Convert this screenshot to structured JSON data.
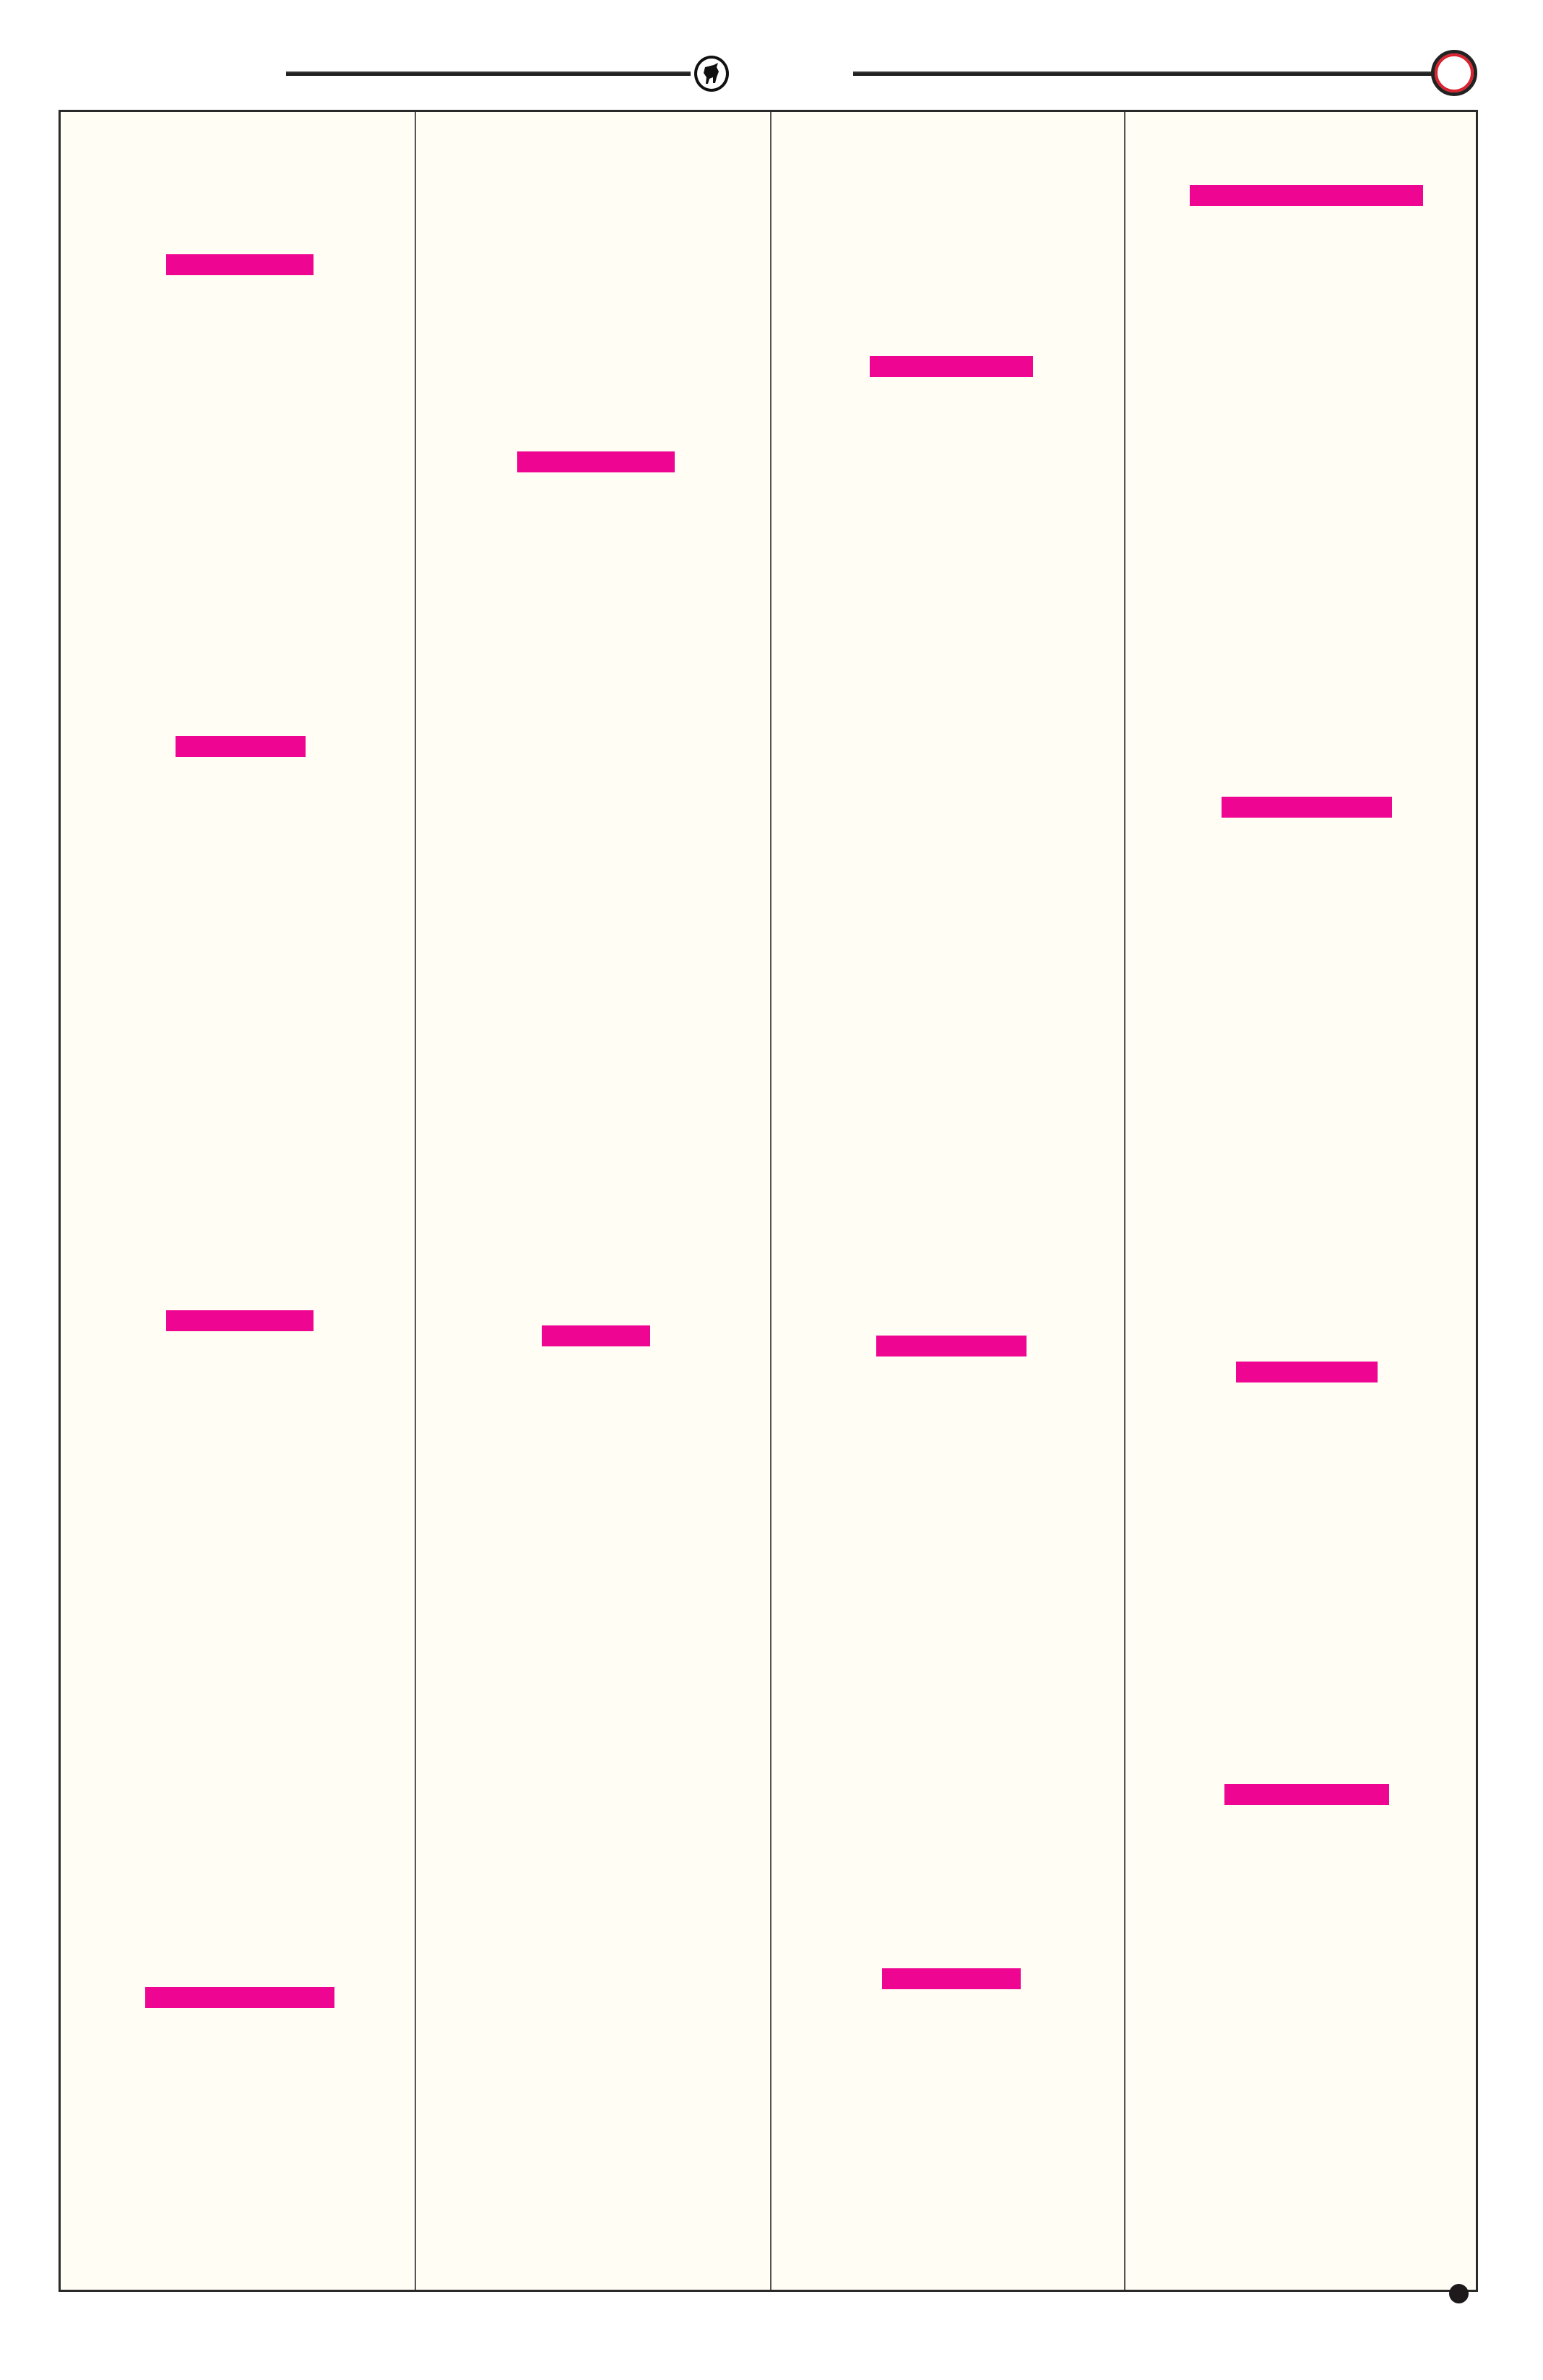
{
  "colors": {
    "page_background": "#ffffff",
    "panel_background": "#fffdf4",
    "redaction_bar": "#ee0591",
    "ring_accent": "#d92430",
    "line": "#222222"
  },
  "header": {
    "emblem_icon": "bull-emblem-icon",
    "end_marker_icon": "red-ring-icon"
  },
  "layout_info": {
    "columns": 4,
    "redaction_bar_counts": [
      4,
      2,
      3,
      4
    ]
  },
  "footer": {
    "marker_icon": "filled-dot-icon"
  }
}
